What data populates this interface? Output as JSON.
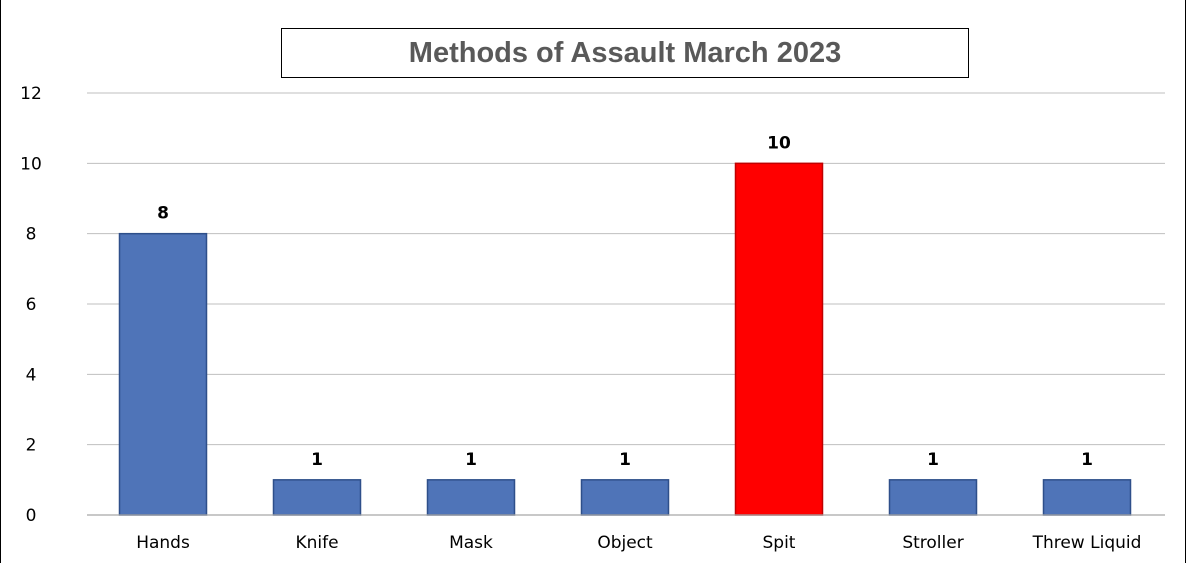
{
  "chart_data": {
    "type": "bar",
    "title": "Methods of Assault March 2023",
    "xlabel": "",
    "ylabel": "",
    "categories": [
      "Hands",
      "Knife",
      "Mask",
      "Object",
      "Spit",
      "Stroller",
      "Threw Liquid"
    ],
    "values": [
      8,
      1,
      1,
      1,
      10,
      1,
      1
    ],
    "data_labels": [
      "8",
      "1",
      "1",
      "1",
      "10",
      "1",
      "1"
    ],
    "ylim": [
      0,
      12
    ],
    "yticks": [
      0,
      2,
      4,
      6,
      8,
      10,
      12
    ],
    "ytick_labels": [
      "0",
      "2",
      "4",
      "6",
      "8",
      "10",
      "12"
    ],
    "grid": true,
    "legend": "none",
    "colors": {
      "default_bar": "#4f74b8",
      "default_bar_edge": "#2e4f8a",
      "highlight_bar": "#ff0000",
      "highlight_bar_edge": "#c00000",
      "gridline": "#bfbfbf",
      "axis_line": "#a6a6a6",
      "title_text": "#595959"
    },
    "bar_colors": [
      "#4f74b8",
      "#4f74b8",
      "#4f74b8",
      "#4f74b8",
      "#ff0000",
      "#4f74b8",
      "#4f74b8"
    ]
  }
}
